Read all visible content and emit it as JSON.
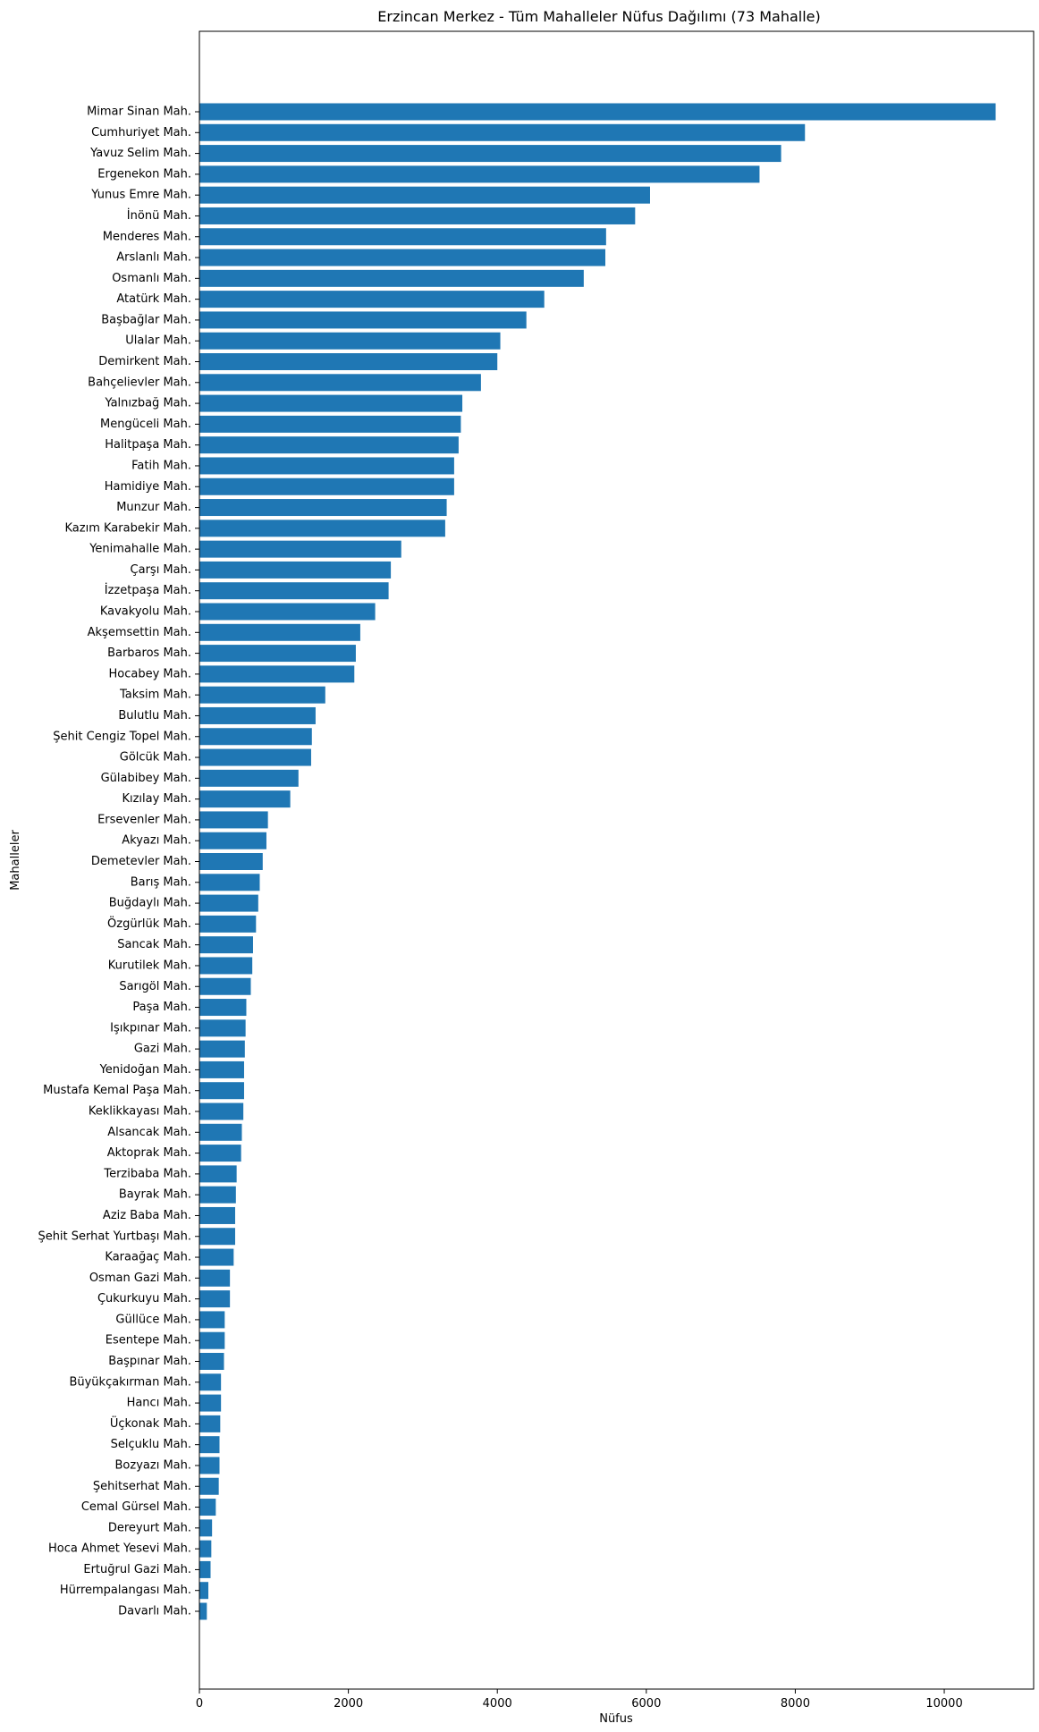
{
  "chart_data": {
    "type": "bar",
    "orientation": "horizontal",
    "title": "Erzincan Merkez - Tüm Mahalleler Nüfus Dağılımı (73 Mahalle)",
    "xlabel": "Nüfus",
    "ylabel": "Mahalleler",
    "xlim": [
      0,
      11200
    ],
    "xticks": [
      0,
      2000,
      4000,
      6000,
      8000,
      10000
    ],
    "xtick_labels": [
      "0",
      "2000",
      "4000",
      "6000",
      "8000",
      "10000"
    ],
    "grid": false,
    "bar_color": "#1f77b4",
    "categories": [
      "Mimar Sinan Mah.",
      "Cumhuriyet Mah.",
      "Yavuz Selim Mah.",
      "Ergenekon Mah.",
      "Yunus Emre Mah.",
      "İnönü Mah.",
      "Menderes Mah.",
      "Arslanlı Mah.",
      "Osmanlı Mah.",
      "Atatürk Mah.",
      "Başbağlar Mah.",
      "Ulalar Mah.",
      "Demirkent Mah.",
      "Bahçelievler Mah.",
      "Yalnızbağ Mah.",
      "Mengüceli Mah.",
      "Halitpaşa Mah.",
      "Fatih Mah.",
      "Hamidiye Mah.",
      "Munzur Mah.",
      "Kazım Karabekir Mah.",
      "Yenimahalle Mah.",
      "Çarşı Mah.",
      "İzzetpaşa Mah.",
      "Kavakyolu Mah.",
      "Akşemsettin Mah.",
      "Barbaros Mah.",
      "Hocabey Mah.",
      "Taksim Mah.",
      "Bulutlu Mah.",
      "Şehit Cengiz Topel Mah.",
      "Gölcük Mah.",
      "Gülabibey Mah.",
      "Kızılay Mah.",
      "Ersevenler Mah.",
      "Akyazı Mah.",
      "Demetevler Mah.",
      "Barış Mah.",
      "Buğdaylı Mah.",
      "Özgürlük Mah.",
      "Sancak Mah.",
      "Kurutilek Mah.",
      "Sarıgöl Mah.",
      "Paşa Mah.",
      "Işıkpınar Mah.",
      "Gazi Mah.",
      "Yenidoğan Mah.",
      "Mustafa Kemal Paşa Mah.",
      "Keklikkayası Mah.",
      "Alsancak Mah.",
      "Aktoprak Mah.",
      "Terzibaba Mah.",
      "Bayrak Mah.",
      "Aziz Baba Mah.",
      "Şehit Serhat Yurtbaşı Mah.",
      "Karaağaç Mah.",
      "Osman Gazi Mah.",
      "Çukurkuyu Mah.",
      "Güllüce Mah.",
      "Esentepe Mah.",
      "Başpınar Mah.",
      "Büyükçakırman Mah.",
      "Hancı Mah.",
      "Üçkonak Mah.",
      "Selçuklu Mah.",
      "Bozyazı Mah.",
      "Şehitserhat Mah.",
      "Cemal Gürsel Mah.",
      "Dereyurt Mah.",
      "Hoca Ahmet Yesevi Mah.",
      "Ertuğrul Gazi Mah.",
      "Hürrempalangası Mah.",
      "Davarlı Mah."
    ],
    "values": [
      10690,
      8130,
      7810,
      7520,
      6050,
      5850,
      5460,
      5450,
      5160,
      4630,
      4390,
      4040,
      4000,
      3780,
      3530,
      3510,
      3480,
      3420,
      3420,
      3320,
      3300,
      2710,
      2570,
      2540,
      2360,
      2160,
      2100,
      2080,
      1690,
      1560,
      1510,
      1500,
      1330,
      1220,
      920,
      900,
      850,
      810,
      790,
      760,
      720,
      710,
      690,
      630,
      620,
      610,
      600,
      600,
      590,
      570,
      560,
      500,
      490,
      480,
      480,
      460,
      410,
      410,
      340,
      340,
      330,
      290,
      290,
      280,
      270,
      270,
      260,
      220,
      170,
      160,
      150,
      120,
      100
    ]
  }
}
